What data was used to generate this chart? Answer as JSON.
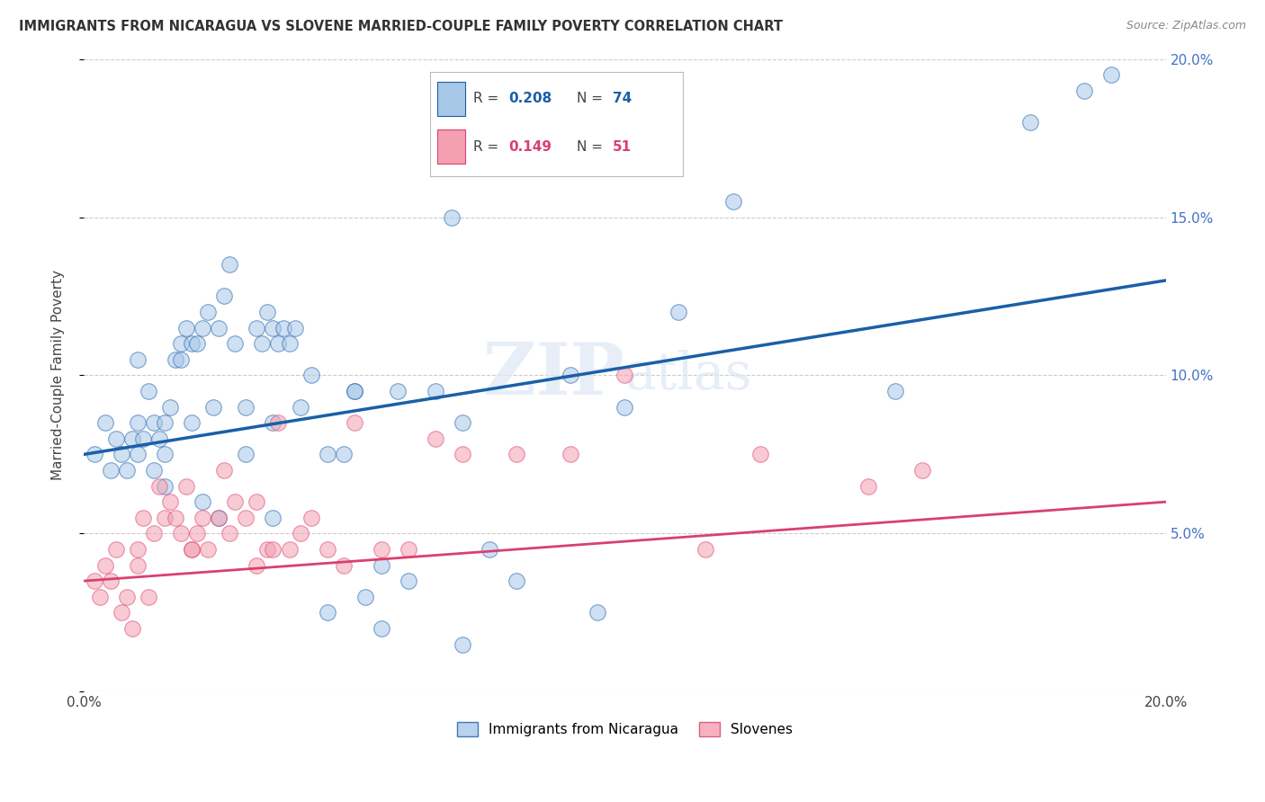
{
  "title": "IMMIGRANTS FROM NICARAGUA VS SLOVENE MARRIED-COUPLE FAMILY POVERTY CORRELATION CHART",
  "source": "Source: ZipAtlas.com",
  "ylabel": "Married-Couple Family Poverty",
  "xlim": [
    0,
    20
  ],
  "ylim": [
    0,
    20
  ],
  "watermark": "ZIPatlas",
  "legend_blue_r": "0.208",
  "legend_blue_n": "74",
  "legend_pink_r": "0.149",
  "legend_pink_n": "51",
  "blue_color": "#a8c8e8",
  "pink_color": "#f4a0b0",
  "line_blue": "#1a5fa8",
  "line_pink": "#d94070",
  "blue_points_x": [
    0.2,
    0.4,
    0.5,
    0.6,
    0.7,
    0.8,
    0.9,
    1.0,
    1.0,
    1.1,
    1.2,
    1.3,
    1.3,
    1.4,
    1.5,
    1.5,
    1.6,
    1.7,
    1.8,
    1.8,
    1.9,
    2.0,
    2.0,
    2.1,
    2.2,
    2.3,
    2.4,
    2.5,
    2.6,
    2.7,
    2.8,
    3.0,
    3.0,
    3.2,
    3.3,
    3.4,
    3.5,
    3.5,
    3.6,
    3.7,
    3.8,
    3.9,
    4.0,
    4.2,
    4.5,
    5.0,
    5.2,
    5.5,
    5.8,
    6.0,
    6.5,
    7.0,
    7.5,
    8.0,
    9.0,
    9.5,
    10.0,
    11.0,
    12.0,
    15.0,
    17.5,
    19.0,
    3.5,
    4.8,
    5.0,
    6.8,
    2.5,
    1.0,
    1.5,
    2.2,
    4.5,
    5.5,
    7.0,
    18.5
  ],
  "blue_points_y": [
    7.5,
    8.5,
    7.0,
    8.0,
    7.5,
    7.0,
    8.0,
    8.5,
    7.5,
    8.0,
    9.5,
    8.5,
    7.0,
    8.0,
    8.5,
    7.5,
    9.0,
    10.5,
    11.0,
    10.5,
    11.5,
    11.0,
    8.5,
    11.0,
    11.5,
    12.0,
    9.0,
    11.5,
    12.5,
    13.5,
    11.0,
    7.5,
    9.0,
    11.5,
    11.0,
    12.0,
    11.5,
    8.5,
    11.0,
    11.5,
    11.0,
    11.5,
    9.0,
    10.0,
    7.5,
    9.5,
    3.0,
    2.0,
    9.5,
    3.5,
    9.5,
    8.5,
    4.5,
    3.5,
    10.0,
    2.5,
    9.0,
    12.0,
    15.5,
    9.5,
    18.0,
    19.5,
    5.5,
    7.5,
    9.5,
    15.0,
    5.5,
    10.5,
    6.5,
    6.0,
    2.5,
    4.0,
    1.5,
    19.0
  ],
  "pink_points_x": [
    0.2,
    0.3,
    0.4,
    0.5,
    0.6,
    0.7,
    0.8,
    0.9,
    1.0,
    1.1,
    1.2,
    1.3,
    1.4,
    1.5,
    1.6,
    1.7,
    1.8,
    1.9,
    2.0,
    2.1,
    2.2,
    2.3,
    2.5,
    2.6,
    2.7,
    2.8,
    3.0,
    3.2,
    3.4,
    3.5,
    3.6,
    3.8,
    4.0,
    4.2,
    4.5,
    4.8,
    5.0,
    5.5,
    6.0,
    6.5,
    7.0,
    8.0,
    9.0,
    10.0,
    11.5,
    12.5,
    14.5,
    15.5,
    1.0,
    2.0,
    3.2
  ],
  "pink_points_y": [
    3.5,
    3.0,
    4.0,
    3.5,
    4.5,
    2.5,
    3.0,
    2.0,
    4.0,
    5.5,
    3.0,
    5.0,
    6.5,
    5.5,
    6.0,
    5.5,
    5.0,
    6.5,
    4.5,
    5.0,
    5.5,
    4.5,
    5.5,
    7.0,
    5.0,
    6.0,
    5.5,
    6.0,
    4.5,
    4.5,
    8.5,
    4.5,
    5.0,
    5.5,
    4.5,
    4.0,
    8.5,
    4.5,
    4.5,
    8.0,
    7.5,
    7.5,
    7.5,
    10.0,
    4.5,
    7.5,
    6.5,
    7.0,
    4.5,
    4.5,
    4.0
  ]
}
